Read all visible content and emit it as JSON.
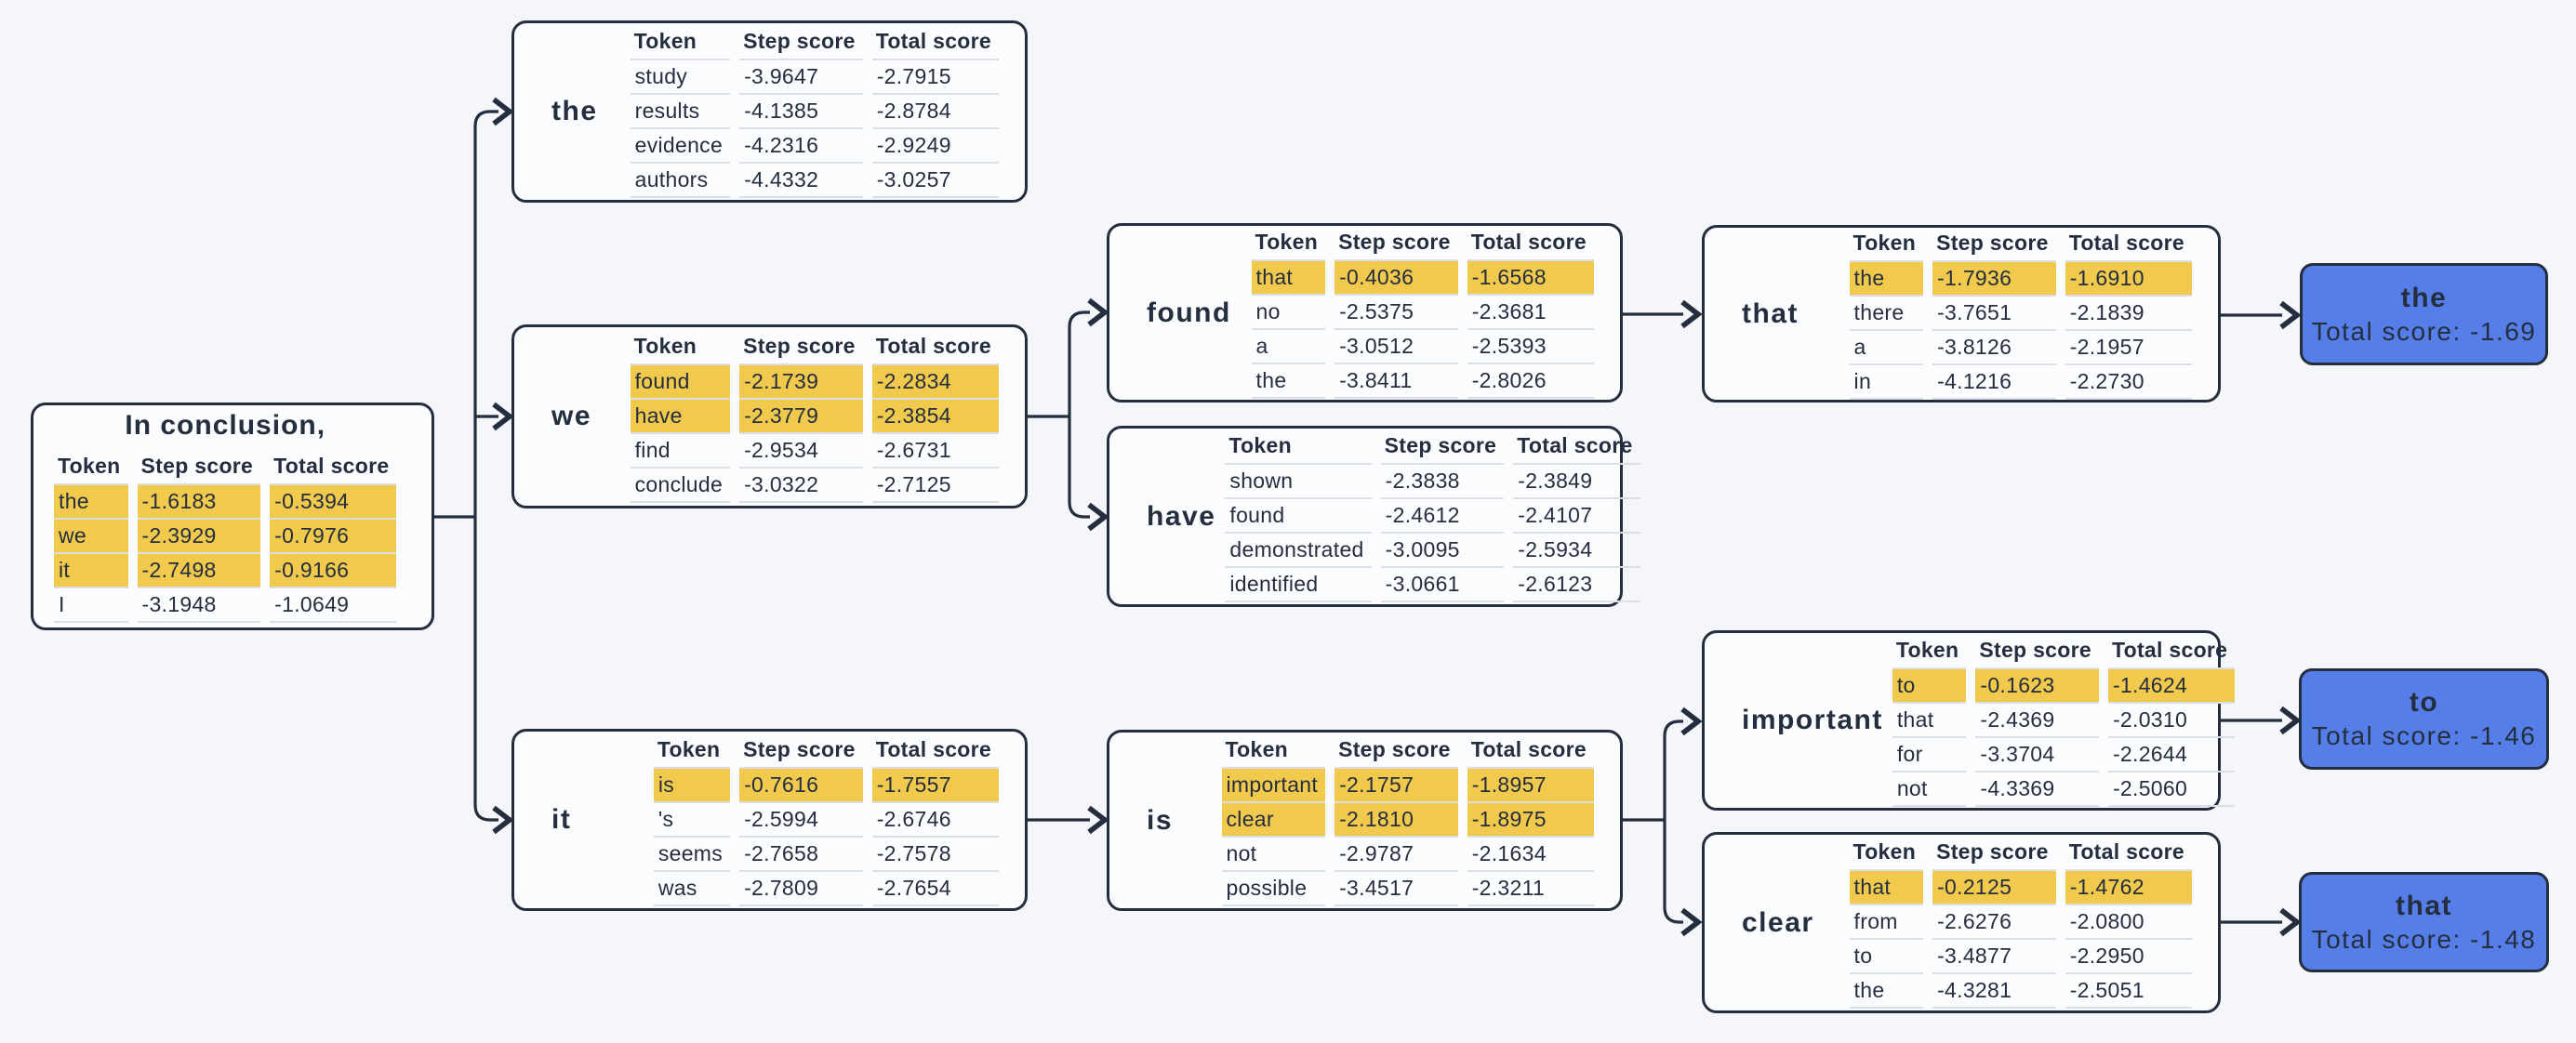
{
  "colors": {
    "ink": "#242E3E",
    "highlight_yellow": "#F0C94D",
    "terminal_blue": "#567EE8",
    "background": "#F4F6F9",
    "box_background": "#FBFCFE",
    "row_rule": "#DBDEE3"
  },
  "table_columns": [
    "Token",
    "Step score",
    "Total score"
  ],
  "root": {
    "title": "In conclusion,",
    "rows": [
      {
        "cells": [
          "the",
          "-1.6183",
          "-0.5394"
        ],
        "highlight": true
      },
      {
        "cells": [
          "we",
          "-2.3929",
          "-0.7976"
        ],
        "highlight": true
      },
      {
        "cells": [
          "it",
          "-2.7498",
          "-0.9166"
        ],
        "highlight": true
      },
      {
        "cells": [
          "I",
          "-3.1948",
          "-1.0649"
        ],
        "highlight": false
      }
    ]
  },
  "nodes": {
    "the": {
      "label": "the",
      "rows": [
        {
          "cells": [
            "study",
            "-3.9647",
            "-2.7915"
          ],
          "highlight": false
        },
        {
          "cells": [
            "results",
            "-4.1385",
            "-2.8784"
          ],
          "highlight": false
        },
        {
          "cells": [
            "evidence",
            "-4.2316",
            "-2.9249"
          ],
          "highlight": false
        },
        {
          "cells": [
            "authors",
            "-4.4332",
            "-3.0257"
          ],
          "highlight": false
        }
      ]
    },
    "we": {
      "label": "we",
      "rows": [
        {
          "cells": [
            "found",
            "-2.1739",
            "-2.2834"
          ],
          "highlight": true
        },
        {
          "cells": [
            "have",
            "-2.3779",
            "-2.3854"
          ],
          "highlight": true
        },
        {
          "cells": [
            "find",
            "-2.9534",
            "-2.6731"
          ],
          "highlight": false
        },
        {
          "cells": [
            "conclude",
            "-3.0322",
            "-2.7125"
          ],
          "highlight": false
        }
      ]
    },
    "it": {
      "label": "it",
      "rows": [
        {
          "cells": [
            "is",
            "-0.7616",
            "-1.7557"
          ],
          "highlight": true
        },
        {
          "cells": [
            "'s",
            "-2.5994",
            "-2.6746"
          ],
          "highlight": false
        },
        {
          "cells": [
            "seems",
            "-2.7658",
            "-2.7578"
          ],
          "highlight": false
        },
        {
          "cells": [
            "was",
            "-2.7809",
            "-2.7654"
          ],
          "highlight": false
        }
      ]
    },
    "found": {
      "label": "found",
      "rows": [
        {
          "cells": [
            "that",
            "-0.4036",
            "-1.6568"
          ],
          "highlight": true
        },
        {
          "cells": [
            "no",
            "-2.5375",
            "-2.3681"
          ],
          "highlight": false
        },
        {
          "cells": [
            "a",
            "-3.0512",
            "-2.5393"
          ],
          "highlight": false
        },
        {
          "cells": [
            "the",
            "-3.8411",
            "-2.8026"
          ],
          "highlight": false
        }
      ]
    },
    "have": {
      "label": "have",
      "rows": [
        {
          "cells": [
            "shown",
            "-2.3838",
            "-2.3849"
          ],
          "highlight": false
        },
        {
          "cells": [
            "found",
            "-2.4612",
            "-2.4107"
          ],
          "highlight": false
        },
        {
          "cells": [
            "demonstrated",
            "-3.0095",
            "-2.5934"
          ],
          "highlight": false
        },
        {
          "cells": [
            "identified",
            "-3.0661",
            "-2.6123"
          ],
          "highlight": false
        }
      ]
    },
    "is": {
      "label": "is",
      "rows": [
        {
          "cells": [
            "important",
            "-2.1757",
            "-1.8957"
          ],
          "highlight": true
        },
        {
          "cells": [
            "clear",
            "-2.1810",
            "-1.8975"
          ],
          "highlight": true
        },
        {
          "cells": [
            "not",
            "-2.9787",
            "-2.1634"
          ],
          "highlight": false
        },
        {
          "cells": [
            "possible",
            "-3.4517",
            "-2.3211"
          ],
          "highlight": false
        }
      ]
    },
    "that": {
      "label": "that",
      "rows": [
        {
          "cells": [
            "the",
            "-1.7936",
            "-1.6910"
          ],
          "highlight": true
        },
        {
          "cells": [
            "there",
            "-3.7651",
            "-2.1839"
          ],
          "highlight": false
        },
        {
          "cells": [
            "a",
            "-3.8126",
            "-2.1957"
          ],
          "highlight": false
        },
        {
          "cells": [
            "in",
            "-4.1216",
            "-2.2730"
          ],
          "highlight": false
        }
      ]
    },
    "important": {
      "label": "important",
      "rows": [
        {
          "cells": [
            "to",
            "-0.1623",
            "-1.4624"
          ],
          "highlight": true
        },
        {
          "cells": [
            "that",
            "-2.4369",
            "-2.0310"
          ],
          "highlight": false
        },
        {
          "cells": [
            "for",
            "-3.3704",
            "-2.2644"
          ],
          "highlight": false
        },
        {
          "cells": [
            "not",
            "-4.3369",
            "-2.5060"
          ],
          "highlight": false
        }
      ]
    },
    "clear": {
      "label": "clear",
      "rows": [
        {
          "cells": [
            "that",
            "-0.2125",
            "-1.4762"
          ],
          "highlight": true
        },
        {
          "cells": [
            "from",
            "-2.6276",
            "-2.0800"
          ],
          "highlight": false
        },
        {
          "cells": [
            "to",
            "-3.4877",
            "-2.2950"
          ],
          "highlight": false
        },
        {
          "cells": [
            "the",
            "-4.3281",
            "-2.5051"
          ],
          "highlight": false
        }
      ]
    }
  },
  "terminals": {
    "the": {
      "token": "the",
      "total_label": "Total score: -1.69"
    },
    "to": {
      "token": "to",
      "total_label": "Total score: -1.46"
    },
    "that": {
      "token": "that",
      "total_label": "Total score: -1.48"
    }
  }
}
